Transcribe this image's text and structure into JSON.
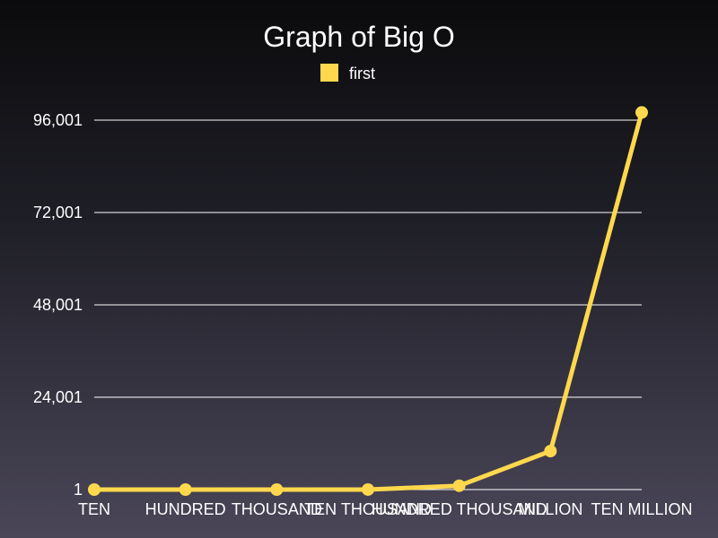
{
  "chart_data": {
    "type": "line",
    "title": "Graph of Big O",
    "categories": [
      "TEN",
      "HUNDRED",
      "THOUSAND",
      "TEN THOUSAND",
      "HUNDRED THOUSAND",
      "MILLION",
      "TEN MILLION"
    ],
    "series": [
      {
        "name": "first",
        "color": "#ffd84d",
        "values": [
          1,
          1,
          1,
          10,
          1000,
          10000,
          98000
        ]
      }
    ],
    "yticks": [
      "1",
      "24,001",
      "48,001",
      "72,001",
      "96,001"
    ],
    "ylim": [
      1,
      96001
    ],
    "grid": true,
    "legend_position": "top-center"
  }
}
